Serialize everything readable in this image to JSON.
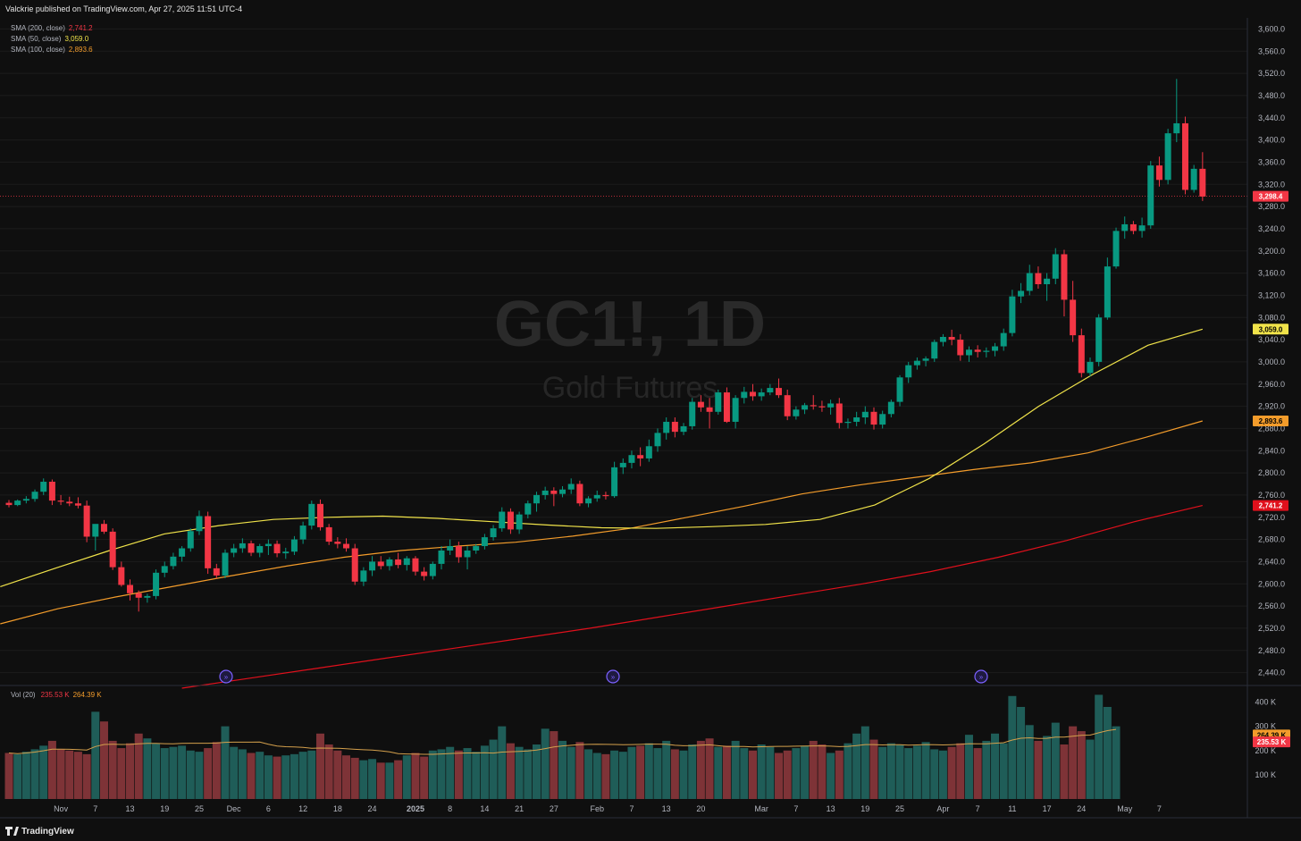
{
  "header": {
    "published": "Valckrie published on TradingView.com, Apr 27, 2025 11:51 UTC-4"
  },
  "watermark": {
    "symbol": "GC1!, 1D",
    "name": "Gold Futures"
  },
  "legend": [
    {
      "label": "SMA (200, close)",
      "value": "2,741.2",
      "color": "#f23645"
    },
    {
      "label": "SMA (50, close)",
      "value": "3,059.0",
      "color": "#f0e34a"
    },
    {
      "label": "SMA (100, close)",
      "value": "2,893.6",
      "color": "#f39c2b"
    }
  ],
  "volume_legend": {
    "label": "Vol (20)",
    "value1": "235.53 K",
    "value2": "264.39 K"
  },
  "price_badges": [
    {
      "text": "3,298.4",
      "value": 3298.4,
      "bg": "#f23645",
      "fg": "#ffffff"
    },
    {
      "text": "3,059.0",
      "value": 3059.0,
      "bg": "#f0e34a",
      "fg": "#000000"
    },
    {
      "text": "2,893.6",
      "value": 2893.6,
      "bg": "#f39c2b",
      "fg": "#000000"
    },
    {
      "text": "2,741.2",
      "value": 2741.2,
      "bg": "#e0101c",
      "fg": "#ffffff"
    }
  ],
  "volume_badges": [
    {
      "text": "264.39 K",
      "value": 264.39,
      "bg": "#f39c2b",
      "fg": "#000000"
    },
    {
      "text": "235.53 K",
      "value": 235.53,
      "bg": "#f23645",
      "fg": "#ffffff"
    }
  ],
  "footer": {
    "brand": "TradingView"
  },
  "colors": {
    "up": "#089981",
    "down": "#f23645",
    "vol_up": "#1f5d58",
    "vol_down": "#7e3337",
    "sma200": "#e0101c",
    "sma50": "#f0e34a",
    "sma100": "#f39c2b",
    "vol_ma": "#d4a04c"
  },
  "chart_data": {
    "type": "candlestick",
    "title": "GC1!, 1D",
    "subtitle": "Gold Futures",
    "ylim": [
      2420,
      3620
    ],
    "y_ticks": [
      2440,
      2480,
      2520,
      2560,
      2600,
      2640,
      2680,
      2720,
      2760,
      2800,
      2840,
      2880,
      2920,
      2960,
      3000,
      3040,
      3080,
      3120,
      3160,
      3200,
      3240,
      3280,
      3320,
      3360,
      3400,
      3440,
      3480,
      3520,
      3560,
      3600
    ],
    "y_tick_labels": [
      "2,440.0",
      "2,480.0",
      "2,520.0",
      "2,560.0",
      "2,600.0",
      "2,640.0",
      "2,680.0",
      "2,720.0",
      "2,760.0",
      "2,800.0",
      "2,840.0",
      "2,880.0",
      "2,920.0",
      "2,960.0",
      "3,000.0",
      "3,040.0",
      "3,080.0",
      "3,120.0",
      "3,160.0",
      "3,200.0",
      "3,240.0",
      "3,280.0",
      "3,320.0",
      "3,360.0",
      "3,400.0",
      "3,440.0",
      "3,480.0",
      "3,520.0",
      "3,560.0",
      "3,600.0"
    ],
    "x_labels": [
      {
        "label": "Nov",
        "i": 6
      },
      {
        "label": "7",
        "i": 10
      },
      {
        "label": "13",
        "i": 14
      },
      {
        "label": "19",
        "i": 18
      },
      {
        "label": "25",
        "i": 22
      },
      {
        "label": "Dec",
        "i": 26
      },
      {
        "label": "6",
        "i": 30
      },
      {
        "label": "12",
        "i": 34
      },
      {
        "label": "18",
        "i": 38
      },
      {
        "label": "24",
        "i": 42
      },
      {
        "label": "2025",
        "i": 47
      },
      {
        "label": "8",
        "i": 51
      },
      {
        "label": "14",
        "i": 55
      },
      {
        "label": "21",
        "i": 59
      },
      {
        "label": "27",
        "i": 63
      },
      {
        "label": "Feb",
        "i": 68
      },
      {
        "label": "7",
        "i": 72
      },
      {
        "label": "13",
        "i": 76
      },
      {
        "label": "20",
        "i": 80
      },
      {
        "label": "Mar",
        "i": 87
      },
      {
        "label": "7",
        "i": 91
      },
      {
        "label": "13",
        "i": 95
      },
      {
        "label": "19",
        "i": 99
      },
      {
        "label": "25",
        "i": 103
      },
      {
        "label": "Apr",
        "i": 108
      },
      {
        "label": "7",
        "i": 112
      },
      {
        "label": "11",
        "i": 116
      },
      {
        "label": "17",
        "i": 120
      },
      {
        "label": "24",
        "i": 124
      },
      {
        "label": "May",
        "i": 129
      },
      {
        "label": "7",
        "i": 133
      }
    ],
    "price_line": 3298.4,
    "candles": [
      [
        2746,
        2751,
        2738,
        2742
      ],
      [
        2742,
        2752,
        2740,
        2750
      ],
      [
        2750,
        2758,
        2745,
        2753
      ],
      [
        2753,
        2770,
        2748,
        2766
      ],
      [
        2766,
        2790,
        2760,
        2784
      ],
      [
        2784,
        2788,
        2742,
        2750
      ],
      [
        2750,
        2760,
        2742,
        2748
      ],
      [
        2748,
        2757,
        2740,
        2745
      ],
      [
        2745,
        2756,
        2736,
        2741
      ],
      [
        2741,
        2750,
        2675,
        2685
      ],
      [
        2685,
        2705,
        2660,
        2708
      ],
      [
        2708,
        2715,
        2690,
        2694
      ],
      [
        2694,
        2700,
        2625,
        2630
      ],
      [
        2630,
        2640,
        2595,
        2598
      ],
      [
        2598,
        2608,
        2570,
        2583
      ],
      [
        2583,
        2588,
        2550,
        2575
      ],
      [
        2575,
        2582,
        2566,
        2578
      ],
      [
        2578,
        2626,
        2572,
        2620
      ],
      [
        2620,
        2640,
        2612,
        2632
      ],
      [
        2632,
        2656,
        2626,
        2649
      ],
      [
        2649,
        2668,
        2640,
        2664
      ],
      [
        2664,
        2700,
        2658,
        2695
      ],
      [
        2695,
        2732,
        2688,
        2722
      ],
      [
        2722,
        2730,
        2618,
        2628
      ],
      [
        2628,
        2636,
        2610,
        2615
      ],
      [
        2615,
        2662,
        2610,
        2656
      ],
      [
        2656,
        2672,
        2648,
        2664
      ],
      [
        2664,
        2682,
        2656,
        2673
      ],
      [
        2673,
        2678,
        2650,
        2656
      ],
      [
        2656,
        2672,
        2648,
        2668
      ],
      [
        2668,
        2680,
        2652,
        2672
      ],
      [
        2672,
        2678,
        2648,
        2655
      ],
      [
        2655,
        2665,
        2645,
        2658
      ],
      [
        2658,
        2686,
        2652,
        2680
      ],
      [
        2680,
        2712,
        2672,
        2705
      ],
      [
        2705,
        2750,
        2698,
        2744
      ],
      [
        2744,
        2752,
        2696,
        2702
      ],
      [
        2702,
        2708,
        2670,
        2676
      ],
      [
        2676,
        2684,
        2664,
        2672
      ],
      [
        2672,
        2682,
        2658,
        2664
      ],
      [
        2664,
        2672,
        2598,
        2604
      ],
      [
        2604,
        2630,
        2596,
        2624
      ],
      [
        2624,
        2650,
        2614,
        2640
      ],
      [
        2640,
        2650,
        2626,
        2632
      ],
      [
        2632,
        2648,
        2624,
        2644
      ],
      [
        2644,
        2656,
        2628,
        2634
      ],
      [
        2634,
        2650,
        2624,
        2646
      ],
      [
        2646,
        2650,
        2615,
        2622
      ],
      [
        2622,
        2630,
        2606,
        2614
      ],
      [
        2614,
        2640,
        2608,
        2636
      ],
      [
        2636,
        2668,
        2626,
        2660
      ],
      [
        2660,
        2680,
        2652,
        2668
      ],
      [
        2668,
        2676,
        2638,
        2648
      ],
      [
        2648,
        2668,
        2626,
        2660
      ],
      [
        2660,
        2672,
        2654,
        2668
      ],
      [
        2668,
        2690,
        2662,
        2684
      ],
      [
        2684,
        2706,
        2678,
        2700
      ],
      [
        2700,
        2738,
        2694,
        2730
      ],
      [
        2730,
        2736,
        2690,
        2698
      ],
      [
        2698,
        2730,
        2690,
        2725
      ],
      [
        2725,
        2750,
        2718,
        2745
      ],
      [
        2745,
        2766,
        2730,
        2760
      ],
      [
        2760,
        2775,
        2752,
        2768
      ],
      [
        2768,
        2774,
        2740,
        2762
      ],
      [
        2762,
        2776,
        2756,
        2770
      ],
      [
        2770,
        2790,
        2762,
        2780
      ],
      [
        2780,
        2786,
        2740,
        2745
      ],
      [
        2745,
        2758,
        2738,
        2754
      ],
      [
        2754,
        2768,
        2748,
        2760
      ],
      [
        2760,
        2766,
        2752,
        2758
      ],
      [
        2758,
        2820,
        2755,
        2810
      ],
      [
        2810,
        2826,
        2798,
        2818
      ],
      [
        2818,
        2840,
        2808,
        2832
      ],
      [
        2832,
        2846,
        2812,
        2826
      ],
      [
        2826,
        2860,
        2820,
        2848
      ],
      [
        2848,
        2880,
        2838,
        2872
      ],
      [
        2872,
        2900,
        2860,
        2892
      ],
      [
        2892,
        2900,
        2864,
        2874
      ],
      [
        2874,
        2890,
        2868,
        2884
      ],
      [
        2884,
        2935,
        2878,
        2928
      ],
      [
        2928,
        2940,
        2910,
        2918
      ],
      [
        2918,
        2935,
        2880,
        2910
      ],
      [
        2910,
        2950,
        2905,
        2945
      ],
      [
        2945,
        2954,
        2890,
        2892
      ],
      [
        2892,
        2940,
        2880,
        2935
      ],
      [
        2935,
        2955,
        2925,
        2946
      ],
      [
        2946,
        2960,
        2930,
        2938
      ],
      [
        2938,
        2952,
        2930,
        2945
      ],
      [
        2945,
        2960,
        2940,
        2953
      ],
      [
        2953,
        2970,
        2935,
        2940
      ],
      [
        2940,
        2950,
        2895,
        2902
      ],
      [
        2902,
        2920,
        2896,
        2914
      ],
      [
        2914,
        2926,
        2906,
        2922
      ],
      [
        2922,
        2940,
        2914,
        2920
      ],
      [
        2920,
        2930,
        2910,
        2918
      ],
      [
        2918,
        2932,
        2905,
        2925
      ],
      [
        2925,
        2935,
        2880,
        2890
      ],
      [
        2890,
        2898,
        2880,
        2892
      ],
      [
        2892,
        2910,
        2884,
        2900
      ],
      [
        2900,
        2920,
        2888,
        2910
      ],
      [
        2910,
        2918,
        2878,
        2887
      ],
      [
        2887,
        2912,
        2880,
        2906
      ],
      [
        2906,
        2932,
        2900,
        2928
      ],
      [
        2928,
        2976,
        2920,
        2972
      ],
      [
        2972,
        3000,
        2962,
        2994
      ],
      [
        2994,
        3008,
        2986,
        3002
      ],
      [
        3002,
        3010,
        2992,
        3006
      ],
      [
        3006,
        3040,
        3000,
        3036
      ],
      [
        3036,
        3050,
        3028,
        3045
      ],
      [
        3045,
        3058,
        3030,
        3040
      ],
      [
        3040,
        3050,
        3002,
        3012
      ],
      [
        3012,
        3028,
        3000,
        3022
      ],
      [
        3022,
        3030,
        3008,
        3018
      ],
      [
        3018,
        3026,
        3008,
        3020
      ],
      [
        3020,
        3034,
        3010,
        3028
      ],
      [
        3028,
        3060,
        3020,
        3052
      ],
      [
        3052,
        3130,
        3046,
        3118
      ],
      [
        3118,
        3142,
        3106,
        3128
      ],
      [
        3128,
        3175,
        3120,
        3160
      ],
      [
        3160,
        3172,
        3132,
        3140
      ],
      [
        3140,
        3160,
        3110,
        3150
      ],
      [
        3150,
        3205,
        3140,
        3194
      ],
      [
        3194,
        3202,
        3082,
        3112
      ],
      [
        3112,
        3146,
        3036,
        3048
      ],
      [
        3048,
        3060,
        2972,
        2980
      ],
      [
        2980,
        3008,
        2974,
        3000
      ],
      [
        3000,
        3086,
        2992,
        3080
      ],
      [
        3080,
        3188,
        3076,
        3172
      ],
      [
        3172,
        3242,
        3168,
        3236
      ],
      [
        3236,
        3262,
        3222,
        3248
      ],
      [
        3248,
        3254,
        3230,
        3236
      ],
      [
        3236,
        3260,
        3224,
        3246
      ],
      [
        3246,
        3362,
        3240,
        3354
      ],
      [
        3354,
        3370,
        3316,
        3328
      ],
      [
        3328,
        3420,
        3320,
        3412
      ],
      [
        3412,
        3510,
        3396,
        3430
      ],
      [
        3430,
        3442,
        3302,
        3310
      ],
      [
        3310,
        3355,
        3305,
        3348
      ],
      [
        3348,
        3378,
        3290,
        3298
      ]
    ],
    "sma50": [
      2595,
      2628,
      2660,
      2690,
      2705,
      2716,
      2720,
      2722,
      2718,
      2712,
      2706,
      2701,
      2700,
      2703,
      2707,
      2716,
      2742,
      2790,
      2852,
      2920,
      2978,
      3030,
      3059
    ],
    "sma100": [
      2528,
      2555,
      2576,
      2595,
      2614,
      2632,
      2648,
      2660,
      2668,
      2675,
      2686,
      2700,
      2720,
      2740,
      2762,
      2778,
      2792,
      2806,
      2818,
      2836,
      2864,
      2893.6
    ],
    "sma200": [
      2412,
      2430,
      2448,
      2466,
      2484,
      2502,
      2520,
      2540,
      2560,
      2580,
      2600,
      2622,
      2648,
      2678,
      2712,
      2741.2
    ],
    "volume_ylim": [
      0,
      450
    ],
    "volume_ticks": [
      100,
      200,
      300,
      400
    ],
    "volume_tick_labels": [
      "100 K",
      "200 K",
      "300 K",
      "400 K"
    ],
    "volume": [
      190,
      185,
      195,
      205,
      220,
      240,
      205,
      200,
      195,
      185,
      360,
      320,
      240,
      210,
      230,
      270,
      250,
      230,
      210,
      215,
      220,
      200,
      195,
      210,
      235,
      300,
      215,
      205,
      190,
      195,
      180,
      175,
      180,
      185,
      195,
      200,
      270,
      225,
      200,
      180,
      170,
      160,
      165,
      150,
      150,
      160,
      180,
      190,
      175,
      200,
      205,
      215,
      200,
      210,
      195,
      220,
      245,
      300,
      230,
      215,
      205,
      225,
      290,
      280,
      240,
      215,
      235,
      205,
      190,
      185,
      200,
      195,
      215,
      220,
      230,
      210,
      240,
      205,
      200,
      225,
      240,
      250,
      215,
      220,
      240,
      210,
      200,
      225,
      215,
      190,
      200,
      210,
      220,
      240,
      225,
      190,
      200,
      230,
      270,
      300,
      245,
      215,
      230,
      225,
      210,
      220,
      235,
      205,
      200,
      215,
      230,
      265,
      210,
      240,
      270,
      230,
      425,
      380,
      305,
      240,
      260,
      315,
      225,
      300,
      280,
      245,
      430,
      380,
      300
    ]
  }
}
